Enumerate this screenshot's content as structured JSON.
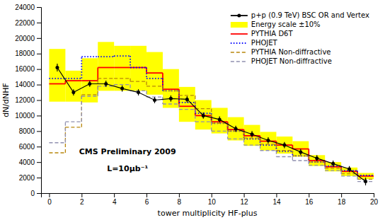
{
  "chart_data": {
    "type": "histogram",
    "xlabel": "tower multiplicity HF-plus",
    "ylabel": "dN/dNHF",
    "xlim": [
      -0.5,
      20
    ],
    "ylim": [
      0,
      24000
    ],
    "xticks": [
      0,
      2,
      4,
      6,
      8,
      10,
      12,
      14,
      16,
      18,
      20
    ],
    "yticks": [
      0,
      2000,
      4000,
      6000,
      8000,
      10000,
      12000,
      14000,
      16000,
      18000,
      20000,
      22000,
      24000
    ],
    "grid": false,
    "legend": "upper right",
    "bins": [
      0,
      1,
      2,
      3,
      4,
      5,
      6,
      7,
      8,
      9,
      10,
      11,
      12,
      13,
      14,
      15,
      16,
      17,
      18,
      19,
      20
    ],
    "series": [
      {
        "name": "p+p (0.9 TeV) BSC OR and Vertex",
        "type": "line",
        "marker": "circle",
        "line_style": "solid",
        "color": "#000000",
        "x": [
          0.5,
          1.5,
          2.5,
          3.5,
          4.5,
          5.5,
          6.5,
          7.5,
          8.5,
          9.5,
          10.5,
          11.5,
          12.5,
          13.5,
          14.5,
          15.5,
          16.5,
          17.5,
          18.5,
          19.5
        ],
        "values": [
          16200,
          13000,
          14100,
          14100,
          13500,
          13000,
          12000,
          12200,
          12100,
          10000,
          9500,
          8300,
          7600,
          6800,
          6200,
          5300,
          4500,
          3800,
          3100,
          1500
        ],
        "errors": [
          500,
          400,
          400,
          400,
          400,
          400,
          400,
          400,
          400,
          400,
          400,
          400,
          400,
          400,
          400,
          400,
          400,
          400,
          400,
          500
        ]
      },
      {
        "name": "Energy scale ±10%",
        "type": "band",
        "color": "#ffff00",
        "lower": [
          11800,
          11800,
          11700,
          13200,
          13200,
          13200,
          12700,
          11000,
          9200,
          8200,
          7700,
          6800,
          6100,
          5500,
          5100,
          4700,
          3500,
          2800,
          2200,
          1800
        ],
        "upper": [
          18600,
          15800,
          17400,
          19500,
          19000,
          19000,
          18200,
          16000,
          13700,
          12000,
          11000,
          9800,
          8800,
          7900,
          7300,
          6700,
          4900,
          4000,
          3300,
          2600
        ]
      },
      {
        "name": "PYTHIA D6T",
        "type": "step",
        "line_style": "solid",
        "color": "#ff0000",
        "values": [
          14100,
          14500,
          14500,
          16200,
          16200,
          16200,
          15500,
          13400,
          11200,
          10000,
          9200,
          8200,
          7400,
          6700,
          6200,
          5700,
          4200,
          3400,
          2800,
          2200
        ]
      },
      {
        "name": "PHOJET",
        "type": "step",
        "line_style": "dotted",
        "color": "#0000ff",
        "values": [
          14800,
          14800,
          17600,
          17600,
          17700,
          16200,
          14800,
          13200,
          11700,
          10300,
          9000,
          8000,
          7000,
          6200,
          5400,
          4800,
          4000,
          3500,
          2900,
          2300
        ]
      },
      {
        "name": "PYTHIA Non-diffractive",
        "type": "step",
        "line_style": "dashed",
        "color": "#b8860b",
        "values": [
          5200,
          8500,
          12700,
          14800,
          14800,
          14400,
          13800,
          13200,
          12600,
          10900,
          9000,
          8000,
          7100,
          6300,
          5500,
          4800,
          4000,
          3200,
          2500,
          1800
        ]
      },
      {
        "name": "PHOJET Non-diffractive",
        "type": "step",
        "line_style": "dashed",
        "color": "#9090b0",
        "values": [
          6500,
          9200,
          12500,
          13800,
          14000,
          13200,
          12400,
          11500,
          10800,
          9200,
          8000,
          7000,
          6200,
          5500,
          4700,
          4200,
          3600,
          2900,
          2200,
          1500
        ]
      }
    ],
    "annotations": [
      "CMS Preliminary 2009",
      "L=10μb⁻¹"
    ]
  }
}
